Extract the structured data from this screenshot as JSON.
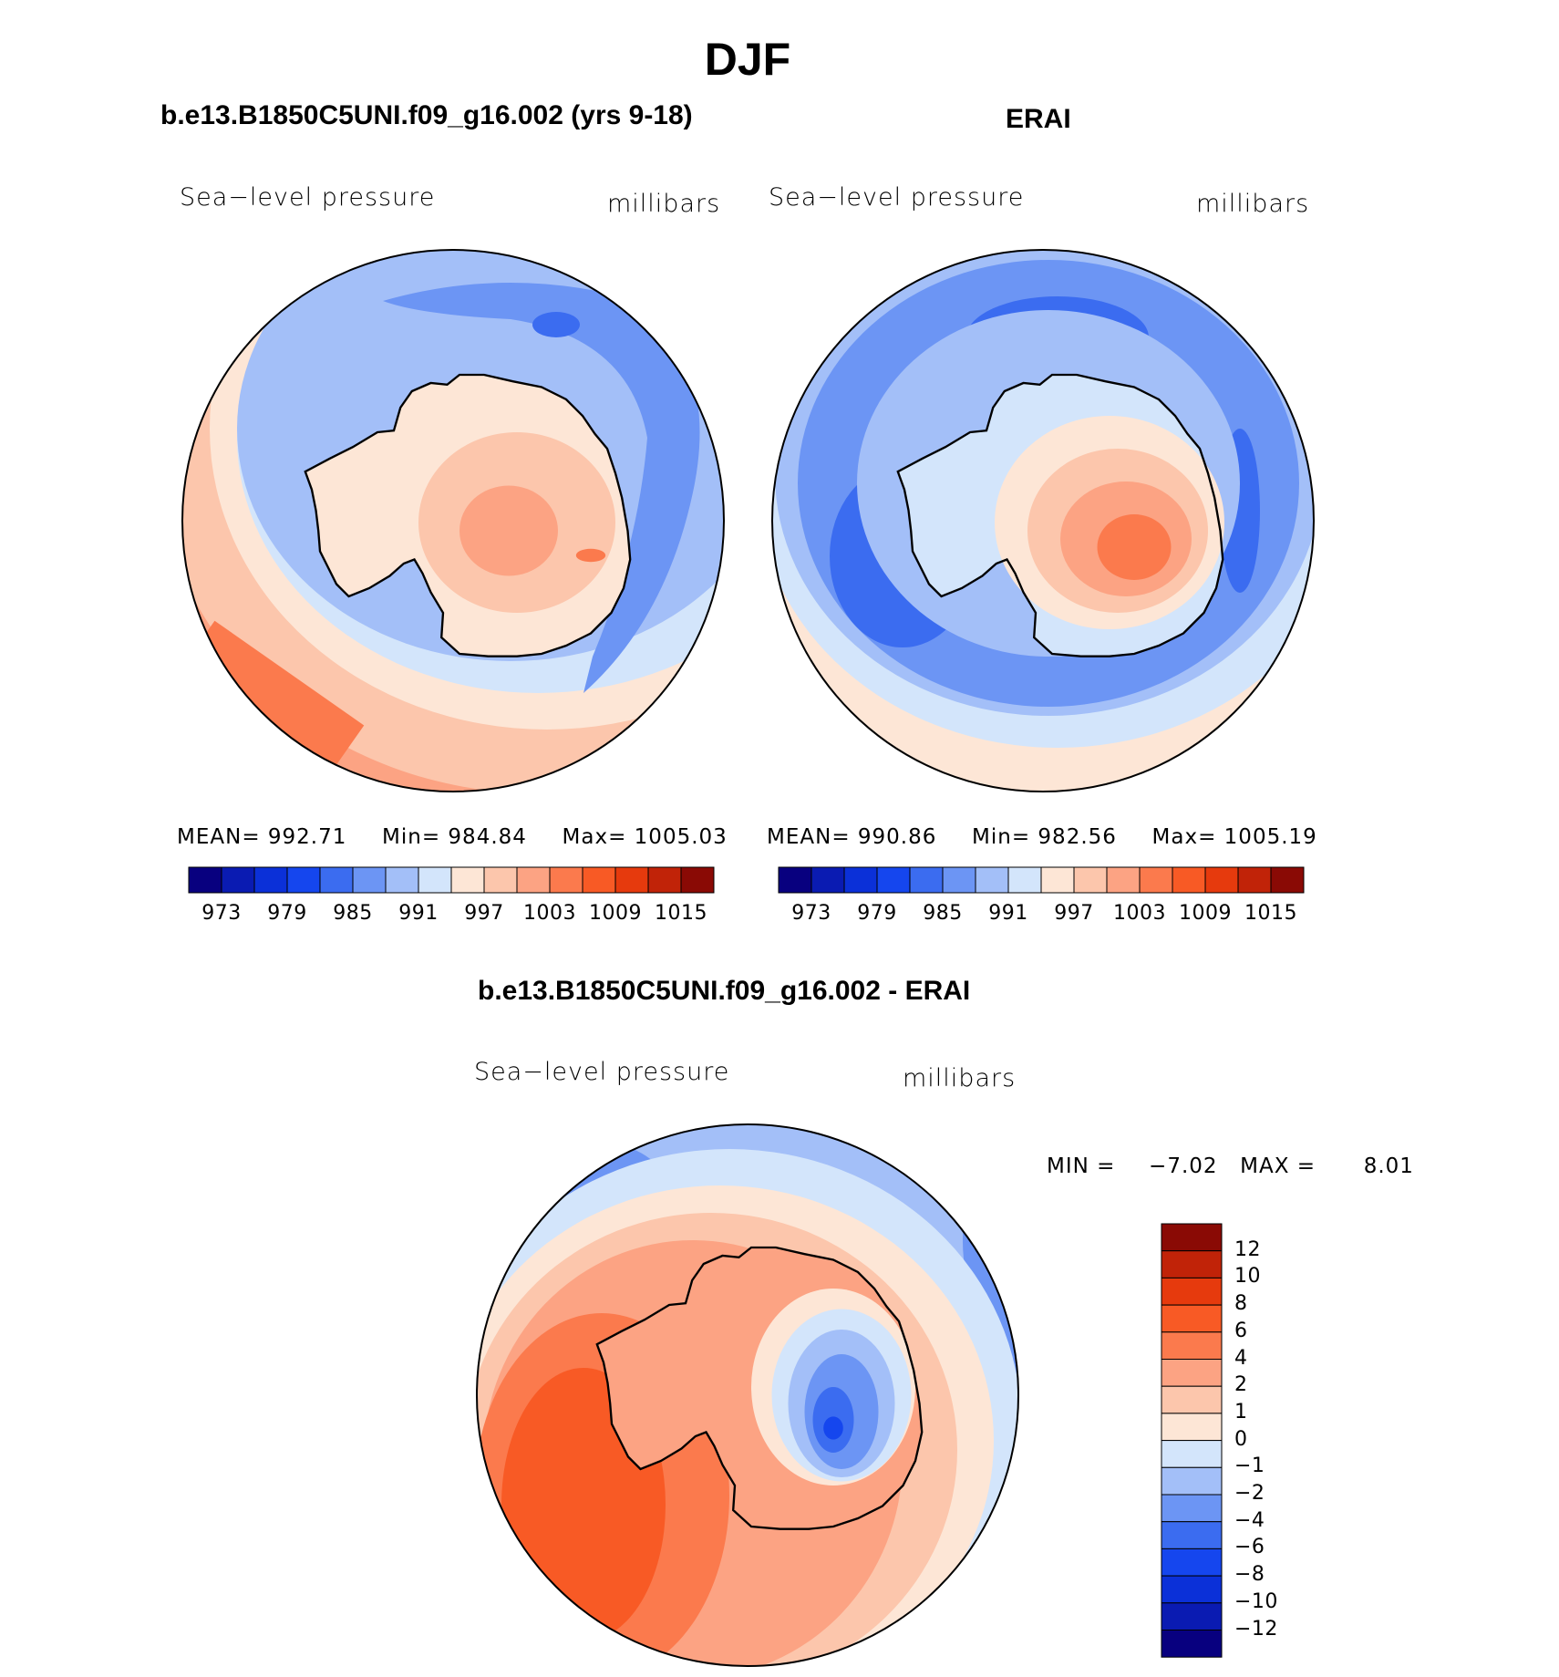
{
  "figure": {
    "title": "DJF",
    "palette": {
      "blues": [
        "#08007f",
        "#0a1bb2",
        "#0b30d8",
        "#1546ee",
        "#3b6cf0",
        "#6c95f4",
        "#a3bff8",
        "#d3e5fb"
      ],
      "reds": [
        "#fde6d6",
        "#fcc6ac",
        "#fca383",
        "#fb7a4d",
        "#f85a25",
        "#e63a0d",
        "#c12308",
        "#8a0a05"
      ],
      "coast": "#000000"
    }
  },
  "panel_model": {
    "title": "b.e13.B1850C5UNI.f09_g16.002 (yrs 9-18)",
    "variable": "Sea−level pressure",
    "units": "millibars",
    "stats": {
      "mean_label": "MEAN=",
      "mean": "992.71",
      "min_label": "Min=",
      "min": "984.84",
      "max_label": "Max=",
      "max": "1005.03"
    }
  },
  "panel_obs": {
    "title": "ERAI",
    "variable": "Sea−level pressure",
    "units": "millibars",
    "stats": {
      "mean_label": "MEAN=",
      "mean": "990.86",
      "min_label": "Min=",
      "min": "982.56",
      "max_label": "Max=",
      "max": "1005.19"
    }
  },
  "colorbar_abs": {
    "ticks": [
      "973",
      "979",
      "985",
      "991",
      "997",
      "1003",
      "1009",
      "1015"
    ]
  },
  "panel_diff": {
    "title": "b.e13.B1850C5UNI.f09_g16.002 - ERAI",
    "variable": "Sea−level pressure",
    "units": "millibars",
    "min_label": "MIN =",
    "min": "−7.02",
    "max_label": "MAX =",
    "max": "8.01"
  },
  "colorbar_diff": {
    "ticks": [
      "12",
      "10",
      "8",
      "6",
      "4",
      "2",
      "1",
      "0",
      "−1",
      "−2",
      "−4",
      "−6",
      "−8",
      "−10",
      "−12"
    ]
  }
}
